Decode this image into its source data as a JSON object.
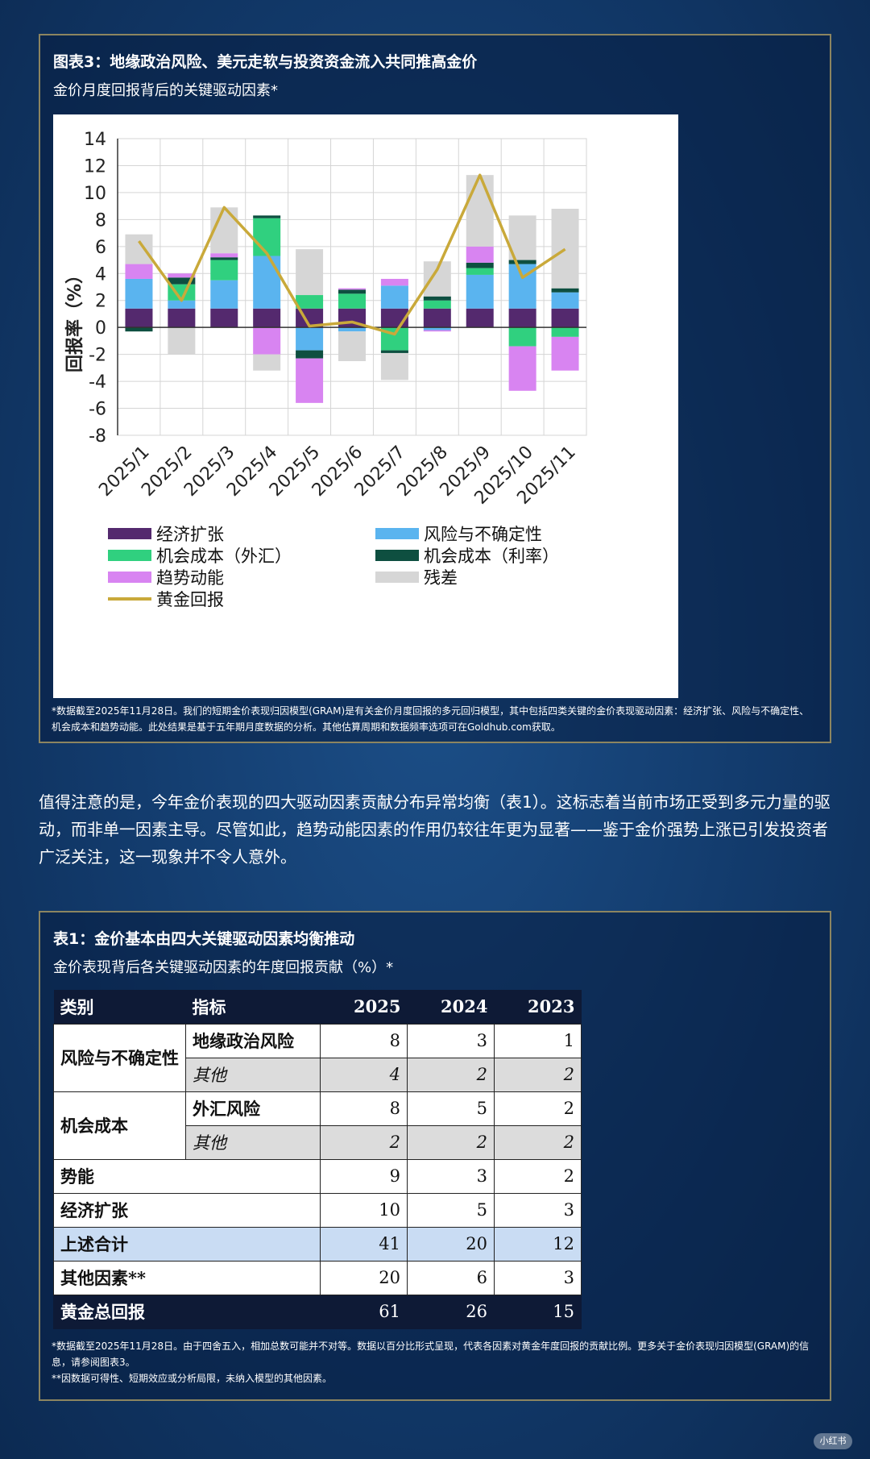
{
  "figure": {
    "title": "图表3：地缘政治风险、美元走软与投资资金流入共同推高金价",
    "subtitle": "金价月度回报背后的关键驱动因素*",
    "note": "*数据截至2025年11月28日。我们的短期金价表现归因模型(GRAM)是有关金价月度回报的多元回归模型，其中包括四类关键的金价表现驱动因素：经济扩张、风险与不确定性、机会成本和趋势动能。此处结果是基于五年期月度数据的分析。其他估算周期和数据频率选项可在Goldhub.com获取。"
  },
  "chart_data": {
    "type": "bar",
    "stacked": true,
    "ylabel": "回报率（%）",
    "ylim": [
      -8,
      14
    ],
    "yticks": [
      14,
      12,
      10,
      8,
      6,
      4,
      2,
      0,
      -2,
      -4,
      -6,
      -8
    ],
    "grid": true,
    "legend_position": "bottom",
    "categories": [
      "2025/1",
      "2025/2",
      "2025/3",
      "2025/4",
      "2025/5",
      "2025/6",
      "2025/7",
      "2025/8",
      "2025/9",
      "2025/10",
      "2025/11"
    ],
    "series": [
      {
        "name": "经济扩张",
        "color": "#54296e",
        "values": [
          1.4,
          1.4,
          1.4,
          1.4,
          1.4,
          1.4,
          1.4,
          1.4,
          1.4,
          1.4,
          1.4
        ]
      },
      {
        "name": "风险与不确定性",
        "color": "#5ab4ef",
        "values": [
          2.2,
          0.6,
          2.1,
          3.9,
          -1.7,
          -0.3,
          1.7,
          -0.2,
          2.5,
          3.3,
          1.2
        ]
      },
      {
        "name": "机会成本（外汇）",
        "color": "#30d07f",
        "values": [
          0,
          1.2,
          1.5,
          2.8,
          1.0,
          1.1,
          -1.7,
          0.6,
          0.5,
          -1.4,
          -0.7
        ]
      },
      {
        "name": "机会成本（利率）",
        "color": "#0e4f40",
        "values": [
          -0.3,
          0.5,
          0.2,
          0.2,
          -0.6,
          0.3,
          -0.2,
          0.3,
          0.4,
          0.3,
          0.3
        ]
      },
      {
        "name": "趋势动能",
        "color": "#d884f1",
        "values": [
          1.1,
          0.3,
          0.3,
          -2.0,
          -3.3,
          0.1,
          0.5,
          -0.1,
          1.2,
          -3.3,
          -2.5
        ]
      },
      {
        "name": "残差",
        "color": "#d6d6d6",
        "values": [
          2.2,
          -2.0,
          3.4,
          -1.2,
          3.4,
          -2.2,
          -2.0,
          2.6,
          5.3,
          3.3,
          5.9
        ]
      }
    ],
    "line": {
      "name": "黄金回报",
      "color": "#c9a93a",
      "values": [
        6.4,
        2.0,
        8.9,
        5.5,
        0.1,
        0.4,
        -0.5,
        4.3,
        11.3,
        3.7,
        5.8
      ]
    }
  },
  "body_paragraph": "值得注意的是，今年金价表现的四大驱动因素贡献分布异常均衡（表1）。这标志着当前市场正受到多元力量的驱动，而非单一因素主导。尽管如此，趋势动能因素的作用仍较往年更为显著——鉴于金价强势上涨已引发投资者广泛关注，这一现象并不令人意外。",
  "table": {
    "title": "表1：金价基本由四大关键驱动因素均衡推动",
    "subtitle": "金价表现背后各关键驱动因素的年度回报贡献（%）*",
    "headers": {
      "category": "类别",
      "indicator": "指标",
      "y1": "2025",
      "y2": "2024",
      "y3": "2023"
    },
    "risk": {
      "category": "风险与不确定性",
      "r1": {
        "indicator": "地缘政治风险",
        "v1": "8",
        "v2": "3",
        "v3": "1"
      },
      "r2": {
        "indicator": "其他",
        "v1": "4",
        "v2": "2",
        "v3": "2"
      }
    },
    "opp": {
      "category": "机会成本",
      "r1": {
        "indicator": "外汇风险",
        "v1": "8",
        "v2": "5",
        "v3": "2"
      },
      "r2": {
        "indicator": "其他",
        "v1": "2",
        "v2": "2",
        "v3": "2"
      }
    },
    "momentum": {
      "label": "势能",
      "v1": "9",
      "v2": "3",
      "v3": "2"
    },
    "econ": {
      "label": "经济扩张",
      "v1": "10",
      "v2": "5",
      "v3": "3"
    },
    "sum": {
      "label": "上述合计",
      "v1": "41",
      "v2": "20",
      "v3": "12"
    },
    "others": {
      "label": "其他因素**",
      "v1": "20",
      "v2": "6",
      "v3": "3"
    },
    "total": {
      "label": "黄金总回报",
      "v1": "61",
      "v2": "26",
      "v3": "15"
    },
    "note1": "*数据截至2025年11月28日。由于四舍五入，相加总数可能并不对等。数据以百分比形式呈现，代表各因素对黄金年度回报的贡献比例。更多关于金价表现归因模型(GRAM)的信息，请参阅图表3。",
    "note2": "**因数据可得性、短期效应或分析局限，未纳入模型的其他因素。"
  },
  "watermark": "小红书"
}
